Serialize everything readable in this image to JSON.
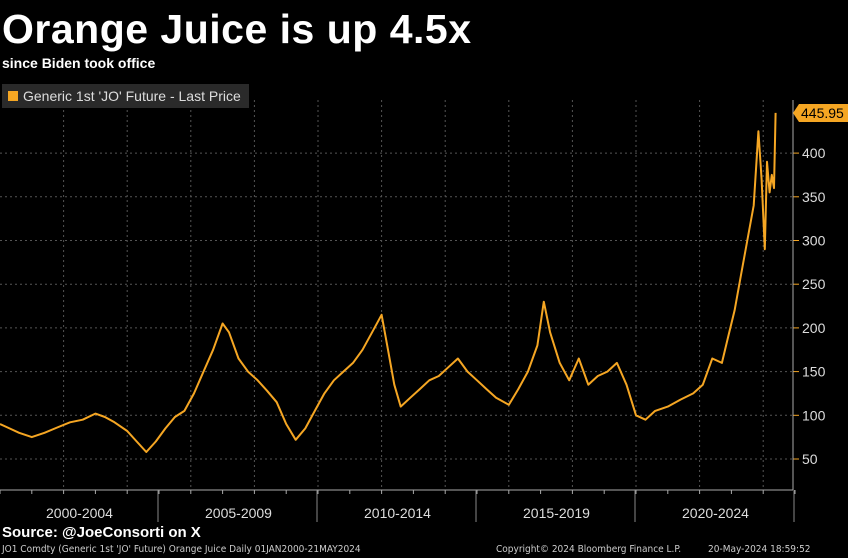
{
  "header": {
    "title": "Orange Juice is up 4.5x",
    "subtitle": "since Biden took office"
  },
  "footer": {
    "source": "Source: @JoeConsorti on X",
    "ticker_info": "JO1 Comdty (Generic 1st 'JO' Future) Orange Juice  Daily 01JAN2000-21MAY2024",
    "copyright": "Copyright© 2024 Bloomberg Finance L.P.",
    "timestamp": "20-May-2024 18:59:52"
  },
  "chart_data": {
    "type": "line",
    "title": "Orange Juice is up 4.5x",
    "subtitle": "since Biden took office",
    "legend": {
      "entries": [
        "Generic 1st 'JO' Future - Last Price"
      ],
      "placement": "top-left"
    },
    "color": "#f5a623",
    "background": "#000000",
    "grid": true,
    "xlim": [
      2000,
      2025
    ],
    "ylim": [
      15,
      470
    ],
    "x_tick_labels": [
      "2000-2004",
      "2005-2009",
      "2010-2014",
      "2015-2019",
      "2020-2024"
    ],
    "y_ticks": [
      50,
      100,
      150,
      200,
      250,
      300,
      350,
      400
    ],
    "last_value_label": "445.95",
    "series": [
      {
        "name": "Generic 1st 'JO' Future - Last Price",
        "x": [
          2000.0,
          2000.3,
          2000.6,
          2001.0,
          2001.4,
          2001.8,
          2002.2,
          2002.6,
          2003.0,
          2003.3,
          2003.6,
          2004.0,
          2004.3,
          2004.6,
          2004.9,
          2005.2,
          2005.5,
          2005.8,
          2006.1,
          2006.4,
          2006.7,
          2007.0,
          2007.2,
          2007.5,
          2007.8,
          2008.1,
          2008.4,
          2008.7,
          2009.0,
          2009.3,
          2009.6,
          2009.9,
          2010.2,
          2010.5,
          2010.8,
          2011.1,
          2011.4,
          2011.7,
          2012.0,
          2012.2,
          2012.4,
          2012.6,
          2012.9,
          2013.2,
          2013.5,
          2013.8,
          2014.1,
          2014.4,
          2014.7,
          2015.0,
          2015.3,
          2015.6,
          2016.0,
          2016.3,
          2016.6,
          2016.9,
          2017.1,
          2017.3,
          2017.6,
          2017.9,
          2018.2,
          2018.5,
          2018.8,
          2019.1,
          2019.4,
          2019.7,
          2020.0,
          2020.3,
          2020.6,
          2021.0,
          2021.4,
          2021.8,
          2022.1,
          2022.4,
          2022.7,
          2022.9,
          2023.1,
          2023.3,
          2023.5,
          2023.7,
          2023.85,
          2023.95,
          2024.05,
          2024.12,
          2024.2,
          2024.27,
          2024.34,
          2024.39
        ],
        "y": [
          90,
          85,
          80,
          75,
          80,
          86,
          92,
          95,
          102,
          98,
          92,
          82,
          70,
          58,
          70,
          85,
          98,
          105,
          125,
          150,
          175,
          205,
          195,
          165,
          150,
          140,
          128,
          115,
          90,
          72,
          85,
          105,
          125,
          140,
          150,
          160,
          175,
          195,
          215,
          175,
          135,
          110,
          120,
          130,
          140,
          145,
          155,
          165,
          150,
          140,
          130,
          120,
          112,
          130,
          150,
          180,
          230,
          195,
          160,
          140,
          165,
          135,
          145,
          150,
          160,
          135,
          100,
          95,
          105,
          110,
          118,
          125,
          135,
          165,
          160,
          190,
          220,
          260,
          300,
          340,
          425,
          370,
          290,
          390,
          355,
          375,
          360,
          445.95
        ]
      }
    ]
  }
}
